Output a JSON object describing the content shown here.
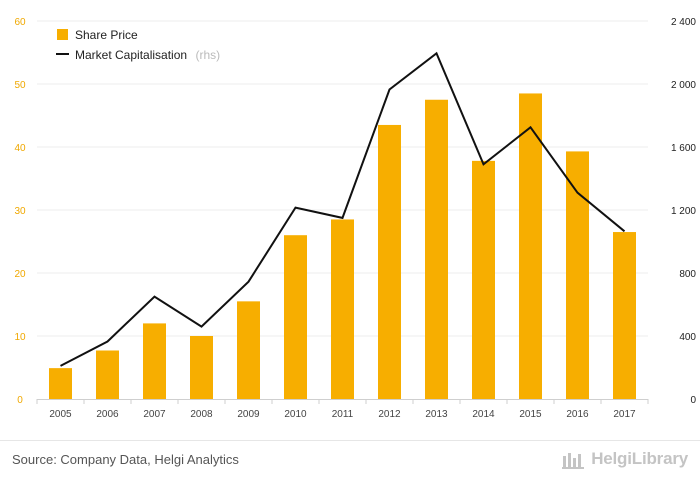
{
  "chart_data": {
    "type": "bar",
    "categories": [
      "2005",
      "2006",
      "2007",
      "2008",
      "2009",
      "2010",
      "2011",
      "2012",
      "2013",
      "2014",
      "2015",
      "2016",
      "2017"
    ],
    "series": [
      {
        "name": "Share Price",
        "type": "bar",
        "axis": "left",
        "values": [
          4.9,
          7.7,
          12.0,
          10.0,
          15.5,
          26.0,
          28.5,
          43.5,
          47.5,
          37.8,
          48.5,
          39.3,
          26.5
        ]
      },
      {
        "name": "Market Capitalisation",
        "name_note": "(rhs)",
        "type": "line",
        "axis": "right",
        "values": [
          210,
          365,
          650,
          460,
          745,
          1215,
          1150,
          1965,
          2195,
          1490,
          1725,
          1310,
          1065
        ]
      }
    ],
    "y_left": {
      "min": 0,
      "max": 60,
      "ticks": [
        0,
        10,
        20,
        30,
        40,
        50,
        60
      ],
      "tick_labels": [
        "0",
        "10",
        "20",
        "30",
        "40",
        "50",
        "60"
      ]
    },
    "y_right": {
      "min": 0,
      "max": 2400,
      "ticks": [
        0,
        400,
        800,
        1200,
        1600,
        2000,
        2400
      ],
      "tick_labels": [
        "0",
        "400",
        "800",
        "1 200",
        "1 600",
        "2 000",
        "2 400"
      ]
    },
    "legend_position": "top-left",
    "grid": true,
    "colors": {
      "bar": "#f7ae00",
      "line": "#111111",
      "grid": "#ececec",
      "left_tick": "#f0a800"
    }
  },
  "footer": {
    "source": "Source: Company Data, Helgi Analytics",
    "logo_text": "HelgiLibrary",
    "logo_icon": "library-bars-icon"
  }
}
